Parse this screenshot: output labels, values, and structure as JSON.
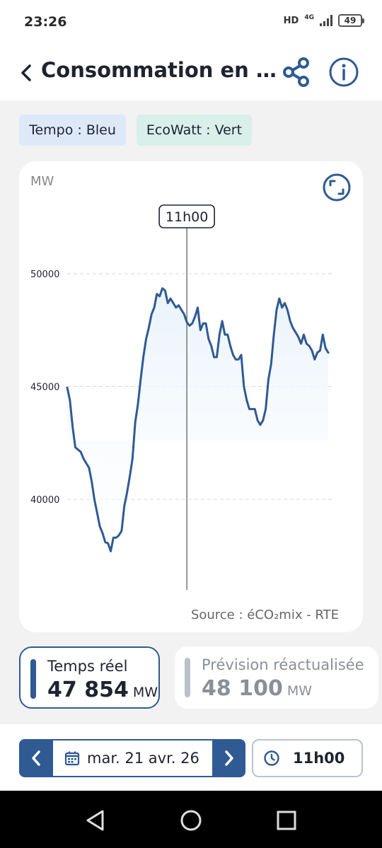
{
  "status_bar": {
    "time": "23:26",
    "network_hd": "HD",
    "network_type": "4G",
    "battery": "49"
  },
  "header": {
    "title": "Consommation en Fra..."
  },
  "chips": {
    "tempo": "Tempo : Bleu",
    "ecowatt": "EcoWatt : Vert"
  },
  "chart_data": {
    "type": "area",
    "ylabel": "MW",
    "yticks": [
      40000,
      45000,
      50000
    ],
    "ylim": [
      36500,
      52500
    ],
    "grid": "horizontal-dashed",
    "cursor_label": "11h00",
    "cursor_index": 44,
    "source": "Source : éCO₂mix - RTE",
    "line_color": "#2f5a93",
    "fill_color": "#e9f3fb",
    "values": [
      44950,
      44400,
      43200,
      42300,
      42200,
      42100,
      41800,
      41600,
      41400,
      40800,
      40000,
      39400,
      38800,
      38500,
      38100,
      38050,
      37700,
      38300,
      38300,
      38400,
      38600,
      39700,
      40300,
      41000,
      41800,
      43400,
      44200,
      45300,
      46300,
      47100,
      47600,
      48200,
      48500,
      49100,
      49000,
      49350,
      49250,
      48700,
      48900,
      48700,
      48500,
      48600,
      48400,
      48200,
      47854,
      47700,
      47800,
      48100,
      48500,
      47500,
      47800,
      47800,
      47100,
      46800,
      46300,
      46300,
      47300,
      47900,
      47300,
      47300,
      46800,
      46400,
      46200,
      46200,
      46400,
      45000,
      44400,
      44000,
      44000,
      44000,
      43500,
      43300,
      43500,
      44000,
      45300,
      46000,
      47300,
      48400,
      48900,
      48500,
      48700,
      48400,
      47900,
      47600,
      47400,
      47200,
      46900,
      47300,
      46900,
      46800,
      46600,
      46200,
      46500,
      46600,
      47300,
      46700,
      46500
    ]
  },
  "realtime": {
    "label": "Temps réel",
    "value": "47 854",
    "unit": "MW",
    "color": "#2f5a93"
  },
  "forecast": {
    "label": "Prévision réactualisée",
    "value": "48 100",
    "unit": "MW",
    "color": "#b9c1cb"
  },
  "controls": {
    "date": "mar. 21 avr. 26",
    "time": "11h00"
  },
  "icons": {
    "back": "chevron-left-icon",
    "share": "share-icon",
    "info": "info-icon",
    "expand": "expand-icon",
    "calendar": "calendar-icon",
    "clock": "clock-icon"
  }
}
